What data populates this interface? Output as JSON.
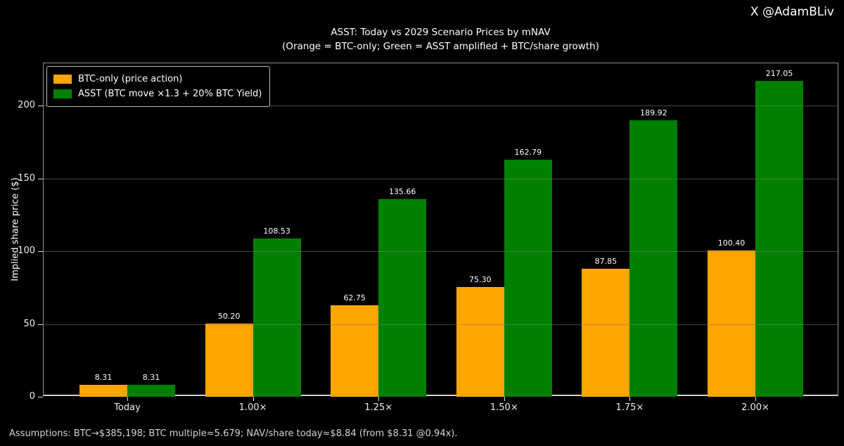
{
  "attribution": "X @AdamBLiv",
  "title": "ASST: Today vs 2029 Scenario Prices by mNAV",
  "subtitle": "(Orange = BTC-only; Green = ASST amplified + BTC/share growth)",
  "footer": "Assumptions: BTC→$385,198; BTC multiple≈5.679; NAV/share today≈$8.84 (from $8.31 @0.94x).",
  "colors": {
    "background": "#000000",
    "text": "#ffffff",
    "orange": "#FFA500",
    "green": "#008000",
    "grid": "#7d7d7d"
  },
  "chart_data": {
    "type": "bar",
    "title": "ASST: Today vs 2029 Scenario Prices by mNAV",
    "subtitle": "(Orange = BTC-only; Green = ASST amplified + BTC/share growth)",
    "categories": [
      "Today",
      "1.00×",
      "1.25×",
      "1.50×",
      "1.75×",
      "2.00×"
    ],
    "series": [
      {
        "name": "BTC-only (price action)",
        "color": "#FFA500",
        "values": [
          8.31,
          50.2,
          62.75,
          75.3,
          87.85,
          100.4
        ]
      },
      {
        "name": "ASST (BTC move ×1.3 + 20% BTC Yield)",
        "color": "#008000",
        "values": [
          8.31,
          108.53,
          135.66,
          162.79,
          189.92,
          217.05
        ]
      }
    ],
    "xlabel": "",
    "ylabel": "Implied share price ($)",
    "yticks": [
      0,
      50,
      100,
      150,
      200
    ],
    "ylim": [
      0,
      229
    ],
    "grid": true,
    "gridlines_above_bars": true,
    "legend_position": "upper-left",
    "value_labels": true,
    "value_label_format": "2-decimals"
  }
}
